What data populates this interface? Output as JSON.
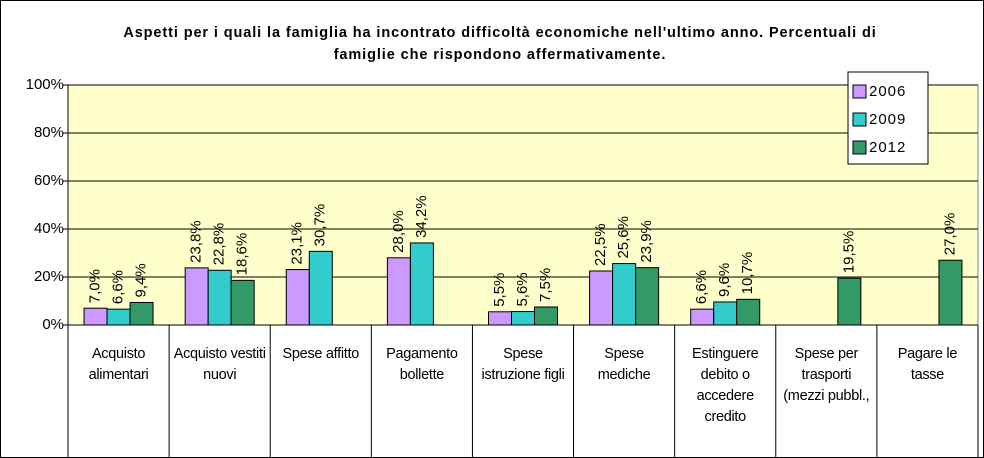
{
  "chart_data": {
    "type": "bar",
    "title": "Aspetti per i quali la famiglia ha incontrato difficoltà economiche nell'ultimo anno. Percentuali di famiglie che rispondono affermativamente.",
    "categories": [
      "Acquisto alimentari",
      "Acquisto vestiti nuovi",
      "Spese affitto",
      "Pagamento bollette",
      "Spese istruzione figli",
      "Spese mediche",
      "Estinguere debito o accedere credito",
      "Spese per trasporti (mezzi pubbl.,",
      "Pagare le tasse"
    ],
    "series": [
      {
        "name": "2006",
        "color": "#cc99ff",
        "values": [
          7.0,
          23.8,
          23.1,
          28.0,
          5.5,
          22.5,
          6.6,
          null,
          null
        ],
        "value_labels": [
          "7,0%",
          "23,8%",
          "23,1%",
          "28,0%",
          "5,5%",
          "22,5%",
          "6,6%",
          null,
          null
        ]
      },
      {
        "name": "2009",
        "color": "#33cccc",
        "values": [
          6.6,
          22.8,
          30.7,
          34.2,
          5.6,
          25.6,
          9.6,
          null,
          null
        ],
        "value_labels": [
          "6,6%",
          "22,8%",
          "30,7%",
          "34,2%",
          "5,6%",
          "25,6%",
          "9,6%",
          null,
          null
        ]
      },
      {
        "name": "2012",
        "color": "#339966",
        "values": [
          9.4,
          18.6,
          null,
          null,
          7.5,
          23.9,
          10.7,
          19.5,
          27.0
        ],
        "value_labels": [
          "9,4%",
          "18,6%",
          null,
          null,
          "7,5%",
          "23,9%",
          "10,7%",
          "19,5%",
          "27,0%"
        ]
      }
    ],
    "ylim": [
      0,
      100
    ],
    "yticks": [
      {
        "value": 0,
        "label": "0%"
      },
      {
        "value": 20,
        "label": "20%"
      },
      {
        "value": 40,
        "label": "40%"
      },
      {
        "value": 60,
        "label": "60%"
      },
      {
        "value": 80,
        "label": "80%"
      },
      {
        "value": 100,
        "label": "100%"
      }
    ],
    "grid": true,
    "legend": "top-right",
    "background": "#ffffcc"
  }
}
